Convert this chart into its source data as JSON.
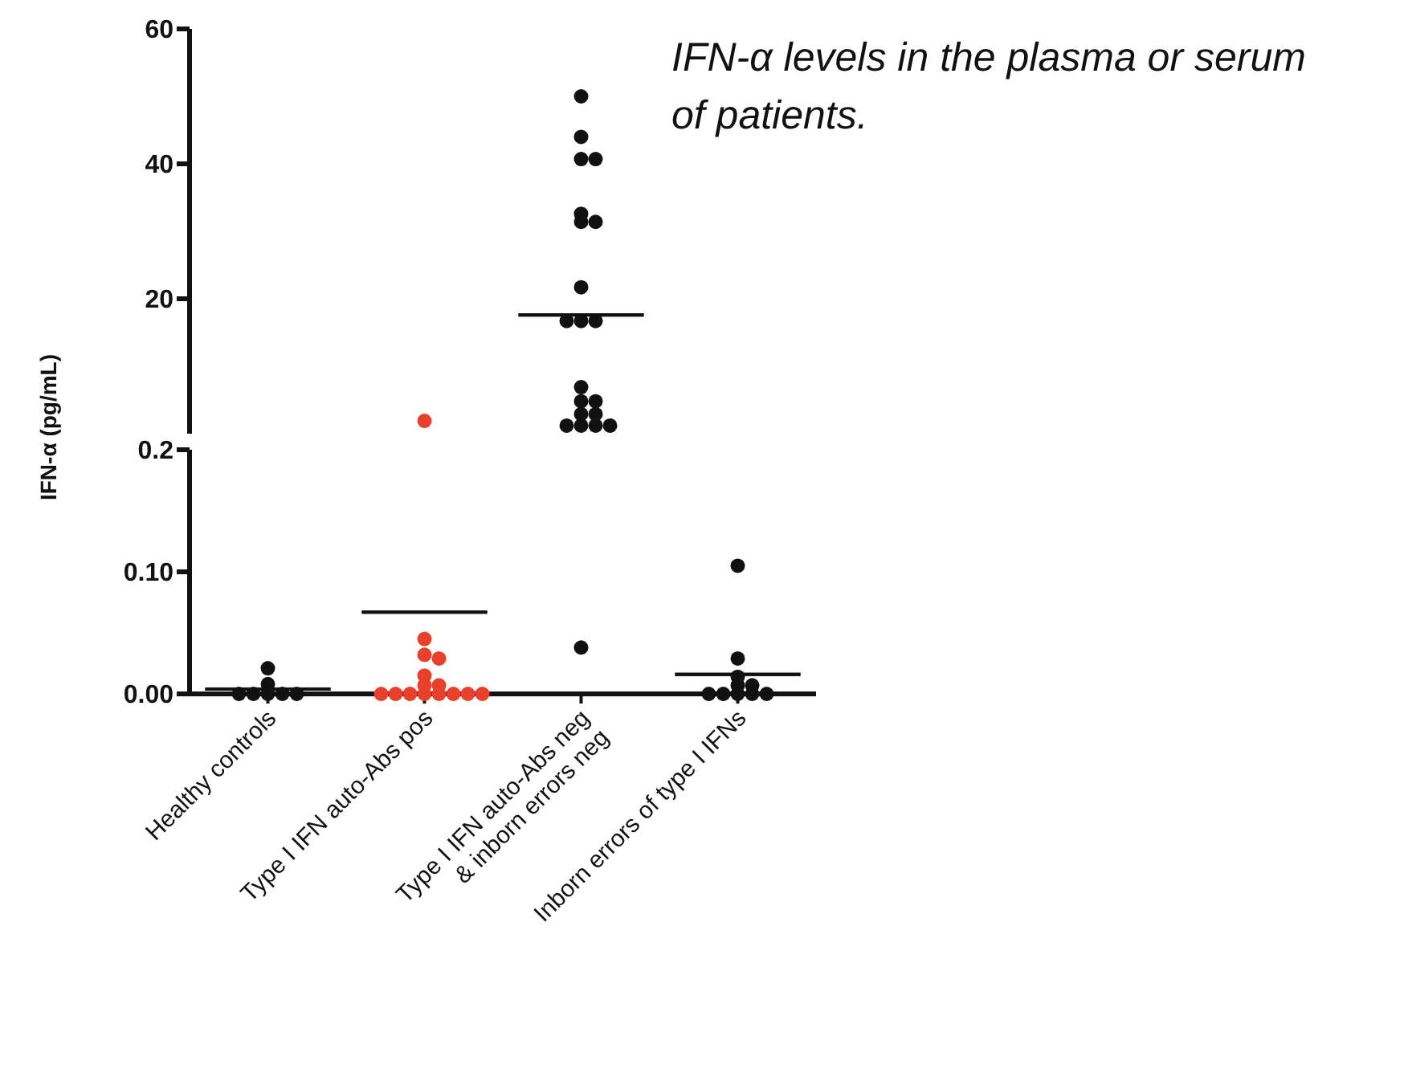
{
  "chart_data": [
    {
      "type": "scatter",
      "ylabel": "IFN-α (pg/mL)",
      "annotations": [
        "IFN-α levels in the plasma or serum of patients."
      ],
      "categories": [
        "Healthy controls",
        "Type I IFN auto-Abs pos",
        "Type I IFN auto-Abs neg\n& inborn errors neg",
        "Inborn errors of type I IFNs"
      ],
      "ylim": [
        0,
        60
      ],
      "yticks": [
        20,
        40,
        60
      ],
      "tick_labels": "y",
      "marker": "circle",
      "series": [
        {
          "type": "box",
          "color": "#111111",
          "x": [
            "Type I IFN auto-Abs neg\n& inborn errors neg"
          ],
          "boxes": [
            {
              "low": 17.6,
              "q1": 17.6,
              "median": 17.6,
              "q3": 17.6,
              "high": 17.6
            }
          ]
        },
        {
          "color": "#e8402a",
          "x": [
            "Type I IFN auto-Abs pos"
          ],
          "values": [
            1.9
          ]
        },
        {
          "color": "#111111",
          "x": [
            "Type I IFN auto-Abs neg\n& inborn errors neg",
            "Type I IFN auto-Abs neg\n& inborn errors neg",
            "Type I IFN auto-Abs neg\n& inborn errors neg",
            "Type I IFN auto-Abs neg\n& inborn errors neg",
            "Type I IFN auto-Abs neg\n& inborn errors neg",
            "Type I IFN auto-Abs neg\n& inborn errors neg",
            "Type I IFN auto-Abs neg\n& inborn errors neg",
            "Type I IFN auto-Abs neg\n& inborn errors neg",
            "Type I IFN auto-Abs neg\n& inborn errors neg",
            "Type I IFN auto-Abs neg\n& inborn errors neg",
            "Type I IFN auto-Abs neg\n& inborn errors neg",
            "Type I IFN auto-Abs neg\n& inborn errors neg",
            "Type I IFN auto-Abs neg\n& inborn errors neg",
            "Type I IFN auto-Abs neg\n& inborn errors neg",
            "Type I IFN auto-Abs neg\n& inborn errors neg",
            "Type I IFN auto-Abs neg\n& inborn errors neg",
            "Type I IFN auto-Abs neg\n& inborn errors neg",
            "Type I IFN auto-Abs neg\n& inborn errors neg",
            "Type I IFN auto-Abs neg\n& inborn errors neg",
            "Type I IFN auto-Abs neg\n& inborn errors neg"
          ],
          "values": [
            50,
            44,
            40.7,
            40.7,
            32.6,
            31.4,
            31.4,
            21.7,
            16.7,
            16.7,
            16.7,
            6.9,
            4.8,
            4.8,
            2.9,
            2.9,
            1.2,
            1.2,
            1.2,
            1.2
          ]
        }
      ]
    },
    {
      "type": "scatter",
      "categories": [
        "Healthy controls",
        "Type I IFN auto-Abs pos",
        "Type I IFN auto-Abs neg\n& inborn errors neg",
        "Inborn errors of type I IFNs"
      ],
      "ylim": [
        0,
        0.2
      ],
      "yticks": [
        {
          "value": 0,
          "label": "0.00"
        },
        {
          "value": 0.1,
          "label": "0.10"
        },
        {
          "value": 0.2,
          "label": "0.2"
        }
      ],
      "marker": "circle",
      "series": [
        {
          "type": "box",
          "color": "#111111",
          "x": [
            "Healthy controls",
            "Type I IFN auto-Abs pos",
            "Inborn errors of type I IFNs"
          ],
          "boxes": [
            {
              "low": 0.004,
              "q1": 0.004,
              "median": 0.004,
              "q3": 0.004,
              "high": 0.004
            },
            {
              "low": 0.067,
              "q1": 0.067,
              "median": 0.067,
              "q3": 0.067,
              "high": 0.067
            },
            {
              "low": 0.016,
              "q1": 0.016,
              "median": 0.016,
              "q3": 0.016,
              "high": 0.016
            }
          ]
        },
        {
          "color": "#111111",
          "x": [
            "Healthy controls",
            "Healthy controls",
            "Healthy controls",
            "Healthy controls",
            "Healthy controls",
            "Healthy controls",
            "Healthy controls"
          ],
          "values": [
            0.021,
            0.008,
            0,
            0,
            0,
            0,
            0
          ]
        },
        {
          "color": "#e8402a",
          "x": [
            "Type I IFN auto-Abs pos",
            "Type I IFN auto-Abs pos",
            "Type I IFN auto-Abs pos",
            "Type I IFN auto-Abs pos",
            "Type I IFN auto-Abs pos",
            "Type I IFN auto-Abs pos",
            "Type I IFN auto-Abs pos",
            "Type I IFN auto-Abs pos",
            "Type I IFN auto-Abs pos",
            "Type I IFN auto-Abs pos",
            "Type I IFN auto-Abs pos",
            "Type I IFN auto-Abs pos",
            "Type I IFN auto-Abs pos",
            "Type I IFN auto-Abs pos"
          ],
          "values": [
            0.045,
            0.032,
            0.029,
            0.015,
            0.007,
            0.007,
            0,
            0,
            0,
            0,
            0,
            0,
            0,
            0
          ]
        },
        {
          "color": "#111111",
          "x": [
            "Type I IFN auto-Abs neg\n& inborn errors neg",
            "Inborn errors of type I IFNs",
            "Inborn errors of type I IFNs",
            "Inborn errors of type I IFNs",
            "Inborn errors of type I IFNs",
            "Inborn errors of type I IFNs",
            "Inborn errors of type I IFNs",
            "Inborn errors of type I IFNs",
            "Inborn errors of type I IFNs",
            "Inborn errors of type I IFNs",
            "Inborn errors of type I IFNs"
          ],
          "values": [
            0.038,
            0.105,
            0.029,
            0.014,
            0.007,
            0.007,
            0,
            0,
            0,
            0,
            0
          ]
        }
      ]
    }
  ]
}
